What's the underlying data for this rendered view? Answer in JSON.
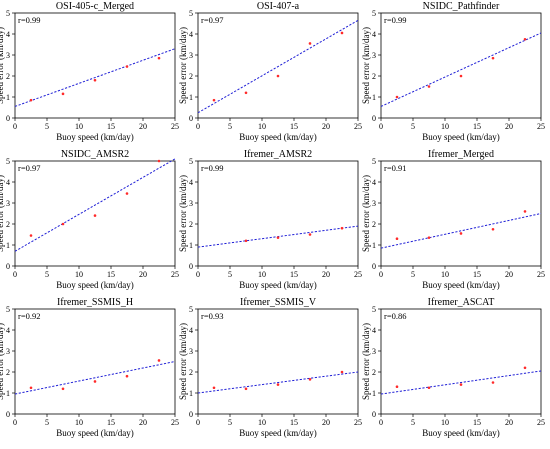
{
  "figure": {
    "tick_x": [
      "0",
      "5",
      "10",
      "15",
      "20",
      "25"
    ],
    "tick_y": [
      "0",
      "1",
      "2",
      "3",
      "4",
      "5"
    ]
  },
  "colors": {
    "fit_line": "#1f1fd6",
    "points": "#ff2a2a",
    "axes": "#000000"
  },
  "chart_data": [
    {
      "type": "scatter",
      "title": "OSI-405-c_Merged",
      "annotation": "r=0.99",
      "xlabel": "Buoy speed (km/day)",
      "ylabel": "Speed error (km/day)",
      "xlim": [
        0,
        25
      ],
      "ylim": [
        0,
        5
      ],
      "grid": false,
      "x": [
        2.5,
        7.5,
        12.5,
        17.5,
        22.5
      ],
      "y": [
        0.85,
        1.15,
        1.8,
        2.45,
        2.85
      ],
      "fit": {
        "x0": 0,
        "y0": 0.55,
        "x1": 25,
        "y1": 3.3
      }
    },
    {
      "type": "scatter",
      "title": "OSI-407-a",
      "annotation": "r=0.97",
      "xlabel": "Buoy speed (km/day)",
      "ylabel": "Speed error (km/day)",
      "xlim": [
        0,
        25
      ],
      "ylim": [
        0,
        5
      ],
      "grid": false,
      "x": [
        2.5,
        7.5,
        12.5,
        17.5,
        22.5
      ],
      "y": [
        0.85,
        1.2,
        2.0,
        3.55,
        4.05
      ],
      "fit": {
        "x0": 0,
        "y0": 0.25,
        "x1": 25,
        "y1": 4.65
      }
    },
    {
      "type": "scatter",
      "title": "NSIDC_Pathfinder",
      "annotation": "r=0.99",
      "xlabel": "Buoy speed (km/day)",
      "ylabel": "Speed error (km/day)",
      "xlim": [
        0,
        25
      ],
      "ylim": [
        0,
        5
      ],
      "grid": false,
      "x": [
        2.5,
        7.5,
        12.5,
        17.5,
        22.5
      ],
      "y": [
        1.0,
        1.5,
        2.0,
        2.85,
        3.75
      ],
      "fit": {
        "x0": 0,
        "y0": 0.55,
        "x1": 25,
        "y1": 4.05
      }
    },
    {
      "type": "scatter",
      "title": "NSIDC_AMSR2",
      "annotation": "r=0.97",
      "xlabel": "Buoy speed (km/day)",
      "ylabel": "Speed error (km/day)",
      "xlim": [
        0,
        25
      ],
      "ylim": [
        0,
        5
      ],
      "grid": false,
      "x": [
        2.5,
        7.5,
        12.5,
        17.5,
        22.5
      ],
      "y": [
        1.45,
        2.0,
        2.4,
        3.45,
        5.0
      ],
      "fit": {
        "x0": 0,
        "y0": 0.7,
        "x1": 25,
        "y1": 5.1
      }
    },
    {
      "type": "scatter",
      "title": "Ifremer_AMSR2",
      "annotation": "r=0.99",
      "xlabel": "Buoy speed (km/day)",
      "ylabel": "Speed error (km/day)",
      "xlim": [
        0,
        25
      ],
      "ylim": [
        0,
        5
      ],
      "grid": false,
      "x": [
        7.5,
        12.5,
        17.5,
        22.5
      ],
      "y": [
        1.2,
        1.35,
        1.5,
        1.8
      ],
      "fit": {
        "x0": 0,
        "y0": 0.9,
        "x1": 25,
        "y1": 1.9
      }
    },
    {
      "type": "scatter",
      "title": "Ifremer_Merged",
      "annotation": "r=0.91",
      "xlabel": "Buoy speed (km/day)",
      "ylabel": "Speed error (km/day)",
      "xlim": [
        0,
        25
      ],
      "ylim": [
        0,
        5
      ],
      "grid": false,
      "x": [
        2.5,
        7.5,
        12.5,
        17.5,
        22.5
      ],
      "y": [
        1.3,
        1.35,
        1.55,
        1.75,
        2.6
      ],
      "fit": {
        "x0": 0,
        "y0": 0.85,
        "x1": 25,
        "y1": 2.5
      }
    },
    {
      "type": "scatter",
      "title": "Ifremer_SSMIS_H",
      "annotation": "r=0.92",
      "xlabel": "Buoy speed (km/day)",
      "ylabel": "Speed error (km/day)",
      "xlim": [
        0,
        25
      ],
      "ylim": [
        0,
        5
      ],
      "grid": false,
      "x": [
        2.5,
        7.5,
        12.5,
        17.5,
        22.5
      ],
      "y": [
        1.25,
        1.2,
        1.55,
        1.8,
        2.55
      ],
      "fit": {
        "x0": 0,
        "y0": 0.95,
        "x1": 25,
        "y1": 2.5
      }
    },
    {
      "type": "scatter",
      "title": "Ifremer_SSMIS_V",
      "annotation": "r=0.93",
      "xlabel": "Buoy speed (km/day)",
      "ylabel": "Speed error (km/day)",
      "xlim": [
        0,
        25
      ],
      "ylim": [
        0,
        5
      ],
      "grid": false,
      "x": [
        2.5,
        7.5,
        12.5,
        17.5,
        22.5
      ],
      "y": [
        1.25,
        1.2,
        1.4,
        1.65,
        2.0
      ],
      "fit": {
        "x0": 0,
        "y0": 1.0,
        "x1": 25,
        "y1": 2.0
      }
    },
    {
      "type": "scatter",
      "title": "Ifremer_ASCAT",
      "annotation": "r=0.86",
      "xlabel": "Buoy speed (km/day)",
      "ylabel": "Speed error (km/day)",
      "xlim": [
        0,
        25
      ],
      "ylim": [
        0,
        5
      ],
      "grid": false,
      "x": [
        2.5,
        7.5,
        12.5,
        17.5,
        22.5
      ],
      "y": [
        1.3,
        1.25,
        1.4,
        1.5,
        2.2
      ],
      "fit": {
        "x0": 0,
        "y0": 0.95,
        "x1": 25,
        "y1": 2.05
      }
    }
  ]
}
